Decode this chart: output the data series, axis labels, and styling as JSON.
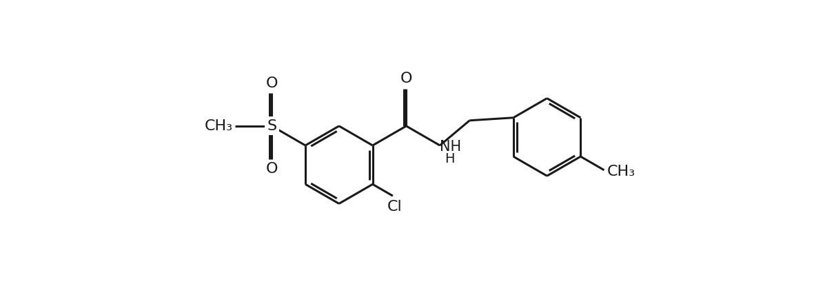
{
  "background_color": "#ffffff",
  "line_color": "#1a1a1a",
  "line_width": 2.2,
  "font_size": 16,
  "figsize": [
    12.1,
    4.28
  ],
  "dpi": 100,
  "xlim": [
    -2.0,
    12.5
  ],
  "ylim": [
    -4.2,
    4.2
  ]
}
